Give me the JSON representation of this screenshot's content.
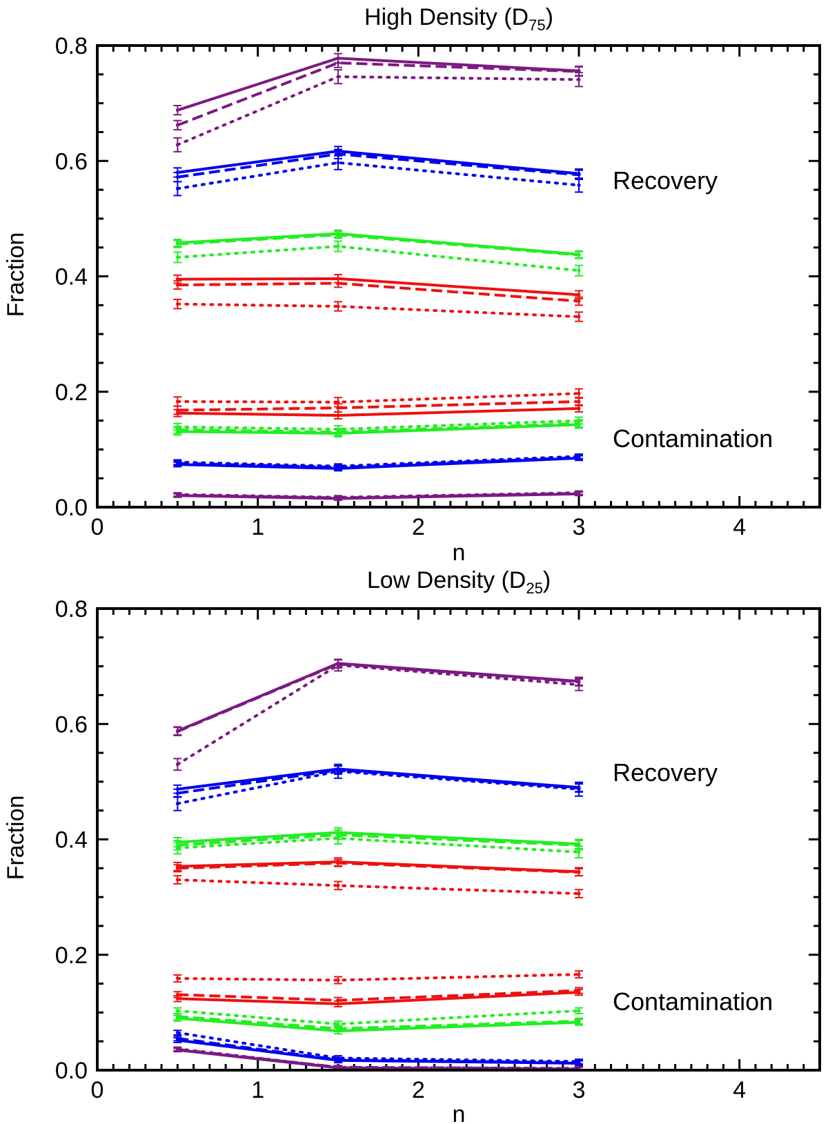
{
  "chart_data": [
    {
      "type": "line",
      "title": "High Density (D",
      "title_sub": "75",
      "title_end": ")",
      "xlabel": "n",
      "ylabel": "Fraction",
      "xlim": [
        0,
        4.5
      ],
      "ylim": [
        0,
        0.8
      ],
      "xticks": [
        0,
        1,
        2,
        3,
        4
      ],
      "yticks": [
        0.0,
        0.2,
        0.4,
        0.6,
        0.8
      ],
      "ytick_labels": [
        "0.0",
        "0.2",
        "0.4",
        "0.6",
        "0.8"
      ],
      "annotations": [
        "Recovery",
        "Contamination"
      ],
      "x": [
        0.5,
        1.5,
        3.0
      ],
      "series": [
        {
          "name": "purple-recovery-solid",
          "color": "#7b1a82",
          "style": "solid",
          "values": [
            0.688,
            0.778,
            0.756
          ],
          "err": 0.008
        },
        {
          "name": "purple-recovery-dashed",
          "color": "#7b1a82",
          "style": "dashed",
          "values": [
            0.662,
            0.77,
            0.755
          ],
          "err": 0.008
        },
        {
          "name": "purple-recovery-dotted",
          "color": "#7b1a82",
          "style": "dotted",
          "values": [
            0.628,
            0.746,
            0.741
          ],
          "err": 0.012
        },
        {
          "name": "blue-recovery-solid",
          "color": "#0000ee",
          "style": "solid",
          "values": [
            0.58,
            0.617,
            0.578
          ],
          "err": 0.008
        },
        {
          "name": "blue-recovery-dashed",
          "color": "#0000ee",
          "style": "dashed",
          "values": [
            0.572,
            0.612,
            0.576
          ],
          "err": 0.008
        },
        {
          "name": "blue-recovery-dotted",
          "color": "#0000ee",
          "style": "dotted",
          "values": [
            0.552,
            0.597,
            0.558
          ],
          "err": 0.012
        },
        {
          "name": "green-recovery-solid",
          "color": "#22ee22",
          "style": "solid",
          "values": [
            0.458,
            0.474,
            0.438
          ],
          "err": 0.006
        },
        {
          "name": "green-recovery-dashed",
          "color": "#22ee22",
          "style": "dashed",
          "values": [
            0.456,
            0.472,
            0.437
          ],
          "err": 0.006
        },
        {
          "name": "green-recovery-dotted",
          "color": "#22ee22",
          "style": "dotted",
          "values": [
            0.433,
            0.452,
            0.41
          ],
          "err": 0.009
        },
        {
          "name": "red-recovery-solid",
          "color": "#ee1111",
          "style": "solid",
          "values": [
            0.395,
            0.396,
            0.368
          ],
          "err": 0.007
        },
        {
          "name": "red-recovery-dashed",
          "color": "#ee1111",
          "style": "dashed",
          "values": [
            0.385,
            0.388,
            0.357
          ],
          "err": 0.007
        },
        {
          "name": "red-recovery-dotted",
          "color": "#ee1111",
          "style": "dotted",
          "values": [
            0.352,
            0.348,
            0.33
          ],
          "err": 0.008
        },
        {
          "name": "red-contam-dotted",
          "color": "#ee1111",
          "style": "dotted",
          "values": [
            0.183,
            0.182,
            0.197
          ],
          "err": 0.008
        },
        {
          "name": "red-contam-dashed",
          "color": "#ee1111",
          "style": "dashed",
          "values": [
            0.168,
            0.172,
            0.183
          ],
          "err": 0.007
        },
        {
          "name": "red-contam-solid",
          "color": "#ee1111",
          "style": "solid",
          "values": [
            0.163,
            0.159,
            0.171
          ],
          "err": 0.006
        },
        {
          "name": "green-contam-dotted",
          "color": "#22ee22",
          "style": "dotted",
          "values": [
            0.139,
            0.135,
            0.15
          ],
          "err": 0.006
        },
        {
          "name": "green-contam-dashed",
          "color": "#22ee22",
          "style": "dashed",
          "values": [
            0.134,
            0.13,
            0.145
          ],
          "err": 0.006
        },
        {
          "name": "green-contam-solid",
          "color": "#22ee22",
          "style": "solid",
          "values": [
            0.131,
            0.128,
            0.143
          ],
          "err": 0.006
        },
        {
          "name": "blue-contam-dotted",
          "color": "#0000ee",
          "style": "dotted",
          "values": [
            0.078,
            0.071,
            0.088
          ],
          "err": 0.004
        },
        {
          "name": "blue-contam-dashed",
          "color": "#0000ee",
          "style": "dashed",
          "values": [
            0.076,
            0.069,
            0.086
          ],
          "err": 0.004
        },
        {
          "name": "blue-contam-solid",
          "color": "#0000ee",
          "style": "solid",
          "values": [
            0.074,
            0.067,
            0.085
          ],
          "err": 0.004
        },
        {
          "name": "purple-contam-dotted",
          "color": "#7b1a82",
          "style": "dotted",
          "values": [
            0.022,
            0.017,
            0.025
          ],
          "err": 0.003
        },
        {
          "name": "purple-contam-dashed",
          "color": "#7b1a82",
          "style": "dashed",
          "values": [
            0.021,
            0.016,
            0.024
          ],
          "err": 0.003
        },
        {
          "name": "purple-contam-solid",
          "color": "#7b1a82",
          "style": "solid",
          "values": [
            0.02,
            0.015,
            0.023
          ],
          "err": 0.003
        }
      ]
    },
    {
      "type": "line",
      "title": "Low Density (D",
      "title_sub": "25",
      "title_end": ")",
      "xlabel": "n",
      "ylabel": "Fraction",
      "xlim": [
        0,
        4.5
      ],
      "ylim": [
        0,
        0.8
      ],
      "xticks": [
        0,
        1,
        2,
        3,
        4
      ],
      "yticks": [
        0.0,
        0.2,
        0.4,
        0.6,
        0.8
      ],
      "ytick_labels": [
        "0.0",
        "0.2",
        "0.4",
        "0.6",
        "0.8"
      ],
      "annotations": [
        "Recovery",
        "Contamination"
      ],
      "x": [
        0.5,
        1.5,
        3.0
      ],
      "series": [
        {
          "name": "purple-recovery-solid",
          "color": "#7b1a82",
          "style": "solid",
          "values": [
            0.588,
            0.705,
            0.674
          ],
          "err": 0.007
        },
        {
          "name": "purple-recovery-dashed",
          "color": "#7b1a82",
          "style": "dashed",
          "values": [
            0.587,
            0.704,
            0.673
          ],
          "err": 0.007
        },
        {
          "name": "purple-recovery-dotted",
          "color": "#7b1a82",
          "style": "dotted",
          "values": [
            0.53,
            0.702,
            0.668
          ],
          "err": 0.01
        },
        {
          "name": "blue-recovery-solid",
          "color": "#0000ee",
          "style": "solid",
          "values": [
            0.487,
            0.522,
            0.49
          ],
          "err": 0.007
        },
        {
          "name": "blue-recovery-dashed",
          "color": "#0000ee",
          "style": "dashed",
          "values": [
            0.48,
            0.52,
            0.489
          ],
          "err": 0.007
        },
        {
          "name": "blue-recovery-dotted",
          "color": "#0000ee",
          "style": "dotted",
          "values": [
            0.462,
            0.518,
            0.487
          ],
          "err": 0.012
        },
        {
          "name": "green-recovery-solid",
          "color": "#22ee22",
          "style": "solid",
          "values": [
            0.395,
            0.412,
            0.392
          ],
          "err": 0.008
        },
        {
          "name": "green-recovery-dashed",
          "color": "#22ee22",
          "style": "dashed",
          "values": [
            0.39,
            0.408,
            0.39
          ],
          "err": 0.008
        },
        {
          "name": "green-recovery-dotted",
          "color": "#22ee22",
          "style": "dotted",
          "values": [
            0.385,
            0.402,
            0.378
          ],
          "err": 0.01
        },
        {
          "name": "red-recovery-solid",
          "color": "#ee1111",
          "style": "solid",
          "values": [
            0.353,
            0.361,
            0.344
          ],
          "err": 0.007
        },
        {
          "name": "red-recovery-dashed",
          "color": "#ee1111",
          "style": "dashed",
          "values": [
            0.35,
            0.359,
            0.343
          ],
          "err": 0.006
        },
        {
          "name": "red-recovery-dotted",
          "color": "#ee1111",
          "style": "dotted",
          "values": [
            0.33,
            0.32,
            0.306
          ],
          "err": 0.007
        },
        {
          "name": "red-contam-dotted",
          "color": "#ee1111",
          "style": "dotted",
          "values": [
            0.159,
            0.156,
            0.166
          ],
          "err": 0.006
        },
        {
          "name": "red-contam-dashed",
          "color": "#ee1111",
          "style": "dashed",
          "values": [
            0.131,
            0.121,
            0.138
          ],
          "err": 0.005
        },
        {
          "name": "red-contam-solid",
          "color": "#ee1111",
          "style": "solid",
          "values": [
            0.124,
            0.115,
            0.135
          ],
          "err": 0.005
        },
        {
          "name": "green-contam-dotted",
          "color": "#22ee22",
          "style": "dotted",
          "values": [
            0.103,
            0.08,
            0.103
          ],
          "err": 0.005
        },
        {
          "name": "green-contam-dashed",
          "color": "#22ee22",
          "style": "dashed",
          "values": [
            0.093,
            0.072,
            0.085
          ],
          "err": 0.005
        },
        {
          "name": "green-contam-solid",
          "color": "#22ee22",
          "style": "solid",
          "values": [
            0.09,
            0.068,
            0.083
          ],
          "err": 0.005
        },
        {
          "name": "blue-contam-dotted",
          "color": "#0000ee",
          "style": "dotted",
          "values": [
            0.065,
            0.021,
            0.015
          ],
          "err": 0.004
        },
        {
          "name": "blue-contam-dashed",
          "color": "#0000ee",
          "style": "dashed",
          "values": [
            0.055,
            0.018,
            0.013
          ],
          "err": 0.004
        },
        {
          "name": "blue-contam-solid",
          "color": "#0000ee",
          "style": "solid",
          "values": [
            0.052,
            0.017,
            0.012
          ],
          "err": 0.004
        },
        {
          "name": "purple-contam-dotted",
          "color": "#7b1a82",
          "style": "dotted",
          "values": [
            0.037,
            0.005,
            0.003
          ],
          "err": 0.003
        },
        {
          "name": "purple-contam-dashed",
          "color": "#7b1a82",
          "style": "dashed",
          "values": [
            0.036,
            0.005,
            0.003
          ],
          "err": 0.003
        },
        {
          "name": "purple-contam-solid",
          "color": "#7b1a82",
          "style": "solid",
          "values": [
            0.035,
            0.004,
            0.002
          ],
          "err": 0.003
        }
      ]
    }
  ]
}
